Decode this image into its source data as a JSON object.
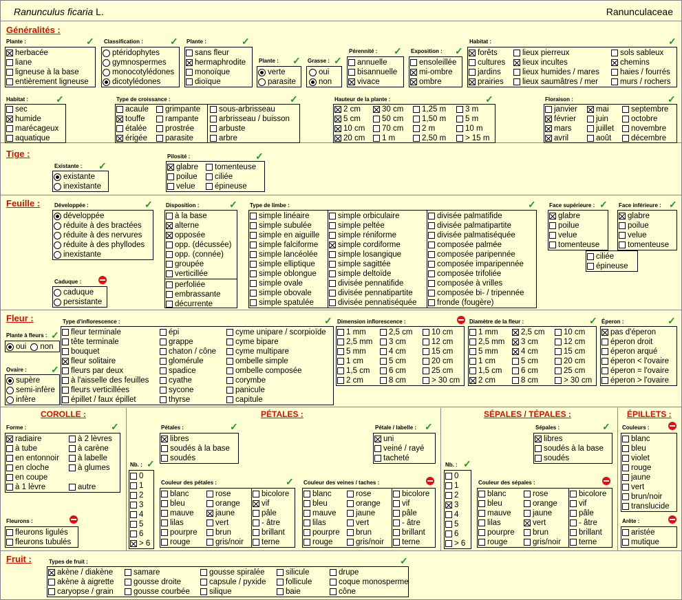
{
  "header": {
    "species": "Ranunculus ficaria",
    "author": "L.",
    "family": "Ranunculaceae"
  },
  "sections": {
    "generalites": "Généralités :",
    "tige": "Tige :",
    "feuille": "Feuille :",
    "fleur": "Fleur :",
    "corolle": "COROLLE :",
    "petales": "PÉTALES :",
    "sepales": "SÉPALES / TÉPALES :",
    "epillets": "ÉPILLETS :",
    "fruit": "Fruit :"
  },
  "labels": {
    "plante": "Plante :",
    "classification": "Classification :",
    "plante2": "Plante :",
    "plante3": "Plante :",
    "grasse": "Grasse :",
    "perennite": "Pérennité :",
    "exposition": "Exposition :",
    "habitat": "Habitat :",
    "habitat2": "Habitat :",
    "croissance": "Type de croissance :",
    "hauteur": "Hauteur de la plante :",
    "floraison": "Floraison :",
    "existante": "Existante :",
    "pilosite": "Pilosité :",
    "developpee": "Développée :",
    "caduque": "Caduque :",
    "disposition": "Disposition :",
    "limbe": "Type de limbe :",
    "face_sup": "Face supérieure :",
    "face_inf": "Face inférieure :",
    "plante_fleurs": "Plante à fleurs :",
    "ovaire": "Ovaire :",
    "inflorescence": "Type d'inflorescence :",
    "dim_inflo": "Dimension inflorescence :",
    "diametre": "Diamètre de la fleur :",
    "eperon": "Éperon :",
    "forme": "Forme :",
    "fleurons": "Fleurons :",
    "nb": "Nb. :",
    "petales_lbl": "Pétales :",
    "couleur_petales": "Couleur des pétales :",
    "petale_labelle": "Pétale / labelle :",
    "couleur_veines": "Couleur des veines / taches :",
    "nb2": "Nb. :",
    "sepales_lbl": "Sépales :",
    "couleur_sepales": "Couleur des sépales :",
    "couleurs": "Couleurs :",
    "arete": "Arête :",
    "types_fruit": "Types de fruit :"
  },
  "opts": {
    "plante": [
      [
        "herbacée",
        1
      ],
      [
        "liane",
        0
      ],
      [
        "ligneuse à la base",
        0
      ],
      [
        "entièrement ligneuse",
        0
      ]
    ],
    "classification": [
      [
        "ptéridophytes",
        0
      ],
      [
        "gymnospermes",
        0
      ],
      [
        "monocotylédones",
        0
      ],
      [
        "dicotylédones",
        1
      ]
    ],
    "plante2": [
      [
        "sans fleur",
        0
      ],
      [
        "hermaphrodite",
        1
      ],
      [
        "monoïque",
        0
      ],
      [
        "dioïque",
        0
      ]
    ],
    "plante3": [
      [
        "verte",
        1
      ],
      [
        "parasite",
        0
      ]
    ],
    "grasse": [
      [
        "oui",
        0
      ],
      [
        "non",
        1
      ]
    ],
    "perennite": [
      [
        "annuelle",
        0
      ],
      [
        "bisannuelle",
        0
      ],
      [
        "vivace",
        1
      ]
    ],
    "exposition": [
      [
        "ensoleillée",
        0
      ],
      [
        "mi-ombre",
        1
      ],
      [
        "ombre",
        1
      ]
    ],
    "habitat_c1": [
      [
        "forêts",
        1
      ],
      [
        "cultures",
        0
      ],
      [
        "jardins",
        0
      ],
      [
        "prairies",
        1
      ]
    ],
    "habitat_c2": [
      [
        "lieux pierreux",
        0
      ],
      [
        "lieux incultes",
        1
      ],
      [
        "lieux humides / mares",
        0
      ],
      [
        "lieux saumâtres / mer",
        0
      ]
    ],
    "habitat_c3": [
      [
        "sols sableux",
        0
      ],
      [
        "chemins",
        1
      ],
      [
        "haies / fourrés",
        0
      ],
      [
        "murs / rochers",
        0
      ]
    ],
    "habitat2": [
      [
        "sec",
        0
      ],
      [
        "humide",
        1
      ],
      [
        "marécageux",
        0
      ],
      [
        "aquatique",
        0
      ]
    ],
    "crois_c1": [
      [
        "acaule",
        0
      ],
      [
        "touffe",
        1
      ],
      [
        "étalée",
        0
      ],
      [
        "érigée",
        1
      ]
    ],
    "crois_c2": [
      [
        "grimpante",
        0
      ],
      [
        "rampante",
        0
      ],
      [
        "prostrée",
        0
      ],
      [
        "parasite",
        0
      ]
    ],
    "crois_c3": [
      [
        "sous-arbrisseau",
        0
      ],
      [
        "arbrisseau / buisson",
        0
      ],
      [
        "arbuste",
        0
      ],
      [
        "arbre",
        0
      ]
    ],
    "haut_c1": [
      [
        "2 cm",
        1
      ],
      [
        "5 cm",
        1
      ],
      [
        "10 cm",
        1
      ],
      [
        "20 cm",
        1
      ]
    ],
    "haut_c2": [
      [
        "30 cm",
        1
      ],
      [
        "50 cm",
        0
      ],
      [
        "70 cm",
        0
      ],
      [
        "1 m",
        0
      ]
    ],
    "haut_c3": [
      [
        "1,25 m",
        0
      ],
      [
        "1,50 m",
        0
      ],
      [
        "2 m",
        0
      ],
      [
        "2,50 m",
        0
      ]
    ],
    "haut_c4": [
      [
        "3 m",
        0
      ],
      [
        "5 m",
        0
      ],
      [
        "10 m",
        0
      ],
      [
        "> 15 m",
        0
      ]
    ],
    "flor_c1": [
      [
        "janvier",
        0
      ],
      [
        "février",
        1
      ],
      [
        "mars",
        1
      ],
      [
        "avril",
        1
      ]
    ],
    "flor_c2": [
      [
        "mai",
        1
      ],
      [
        "juin",
        0
      ],
      [
        "juillet",
        0
      ],
      [
        "août",
        0
      ]
    ],
    "flor_c3": [
      [
        "septembre",
        0
      ],
      [
        "octobre",
        0
      ],
      [
        "novembre",
        0
      ],
      [
        "décembre",
        0
      ]
    ],
    "existante": [
      [
        "existante",
        1
      ],
      [
        "inexistante",
        0
      ]
    ],
    "pilo_c1": [
      [
        "glabre",
        1
      ],
      [
        "poilue",
        0
      ],
      [
        "velue",
        0
      ]
    ],
    "pilo_c2": [
      [
        "tomenteuse",
        0
      ],
      [
        "ciliée",
        0
      ],
      [
        "épineuse",
        0
      ]
    ],
    "developpee": [
      [
        "développée",
        1
      ],
      [
        "réduite à des bractées",
        0
      ],
      [
        "réduite à des nervures",
        0
      ],
      [
        "réduite à des phyllodes",
        0
      ],
      [
        "inexistante",
        0
      ]
    ],
    "caduque": [
      [
        "caduque",
        0
      ],
      [
        "persistante",
        0
      ]
    ],
    "disposition": [
      [
        "à la base",
        0
      ],
      [
        "alterne",
        1
      ],
      [
        "opposée",
        1
      ],
      [
        "opp. (décussée)",
        0
      ],
      [
        "opp. (connée)",
        0
      ],
      [
        "groupée",
        0
      ],
      [
        "verticillée",
        0
      ]
    ],
    "disposition2": [
      [
        "perfoliée",
        0
      ],
      [
        "embrassante",
        0
      ],
      [
        "décurrente",
        0
      ]
    ],
    "limbe_c1": [
      [
        "simple linéaire",
        0
      ],
      [
        "simple subulée",
        0
      ],
      [
        "simple en aiguille",
        0
      ],
      [
        "simple falciforme",
        0
      ],
      [
        "simple lancéolée",
        0
      ],
      [
        "simple elliptique",
        0
      ],
      [
        "simple oblongue",
        0
      ],
      [
        "simple ovale",
        0
      ],
      [
        "simple obovale",
        0
      ],
      [
        "simple spatulée",
        0
      ]
    ],
    "limbe_c2": [
      [
        "simple orbiculaire",
        0
      ],
      [
        "simple peltée",
        0
      ],
      [
        "simple réniforme",
        0
      ],
      [
        "simple cordiforme",
        1
      ],
      [
        "simple losangique",
        0
      ],
      [
        "simple sagittée",
        0
      ],
      [
        "simple deltoïde",
        0
      ],
      [
        "divisée pennatifide",
        0
      ],
      [
        "divisée pennatipartite",
        0
      ],
      [
        "divisée pennatiséquée",
        0
      ]
    ],
    "limbe_c3": [
      [
        "divisée palmatifide",
        0
      ],
      [
        "divisée palmatipartite",
        0
      ],
      [
        "divisée palmatiséquée",
        0
      ],
      [
        "composée palmée",
        0
      ],
      [
        "composée paripennée",
        0
      ],
      [
        "composée imparipennée",
        0
      ],
      [
        "composée trifoliée",
        0
      ],
      [
        "composée à vrilles",
        0
      ],
      [
        "composée bi- / tripennée",
        0
      ],
      [
        "fronde (fougère)",
        0
      ]
    ],
    "face_sup": [
      [
        "glabre",
        1
      ],
      [
        "poilue",
        0
      ],
      [
        "velue",
        0
      ],
      [
        "tomenteuse",
        0
      ]
    ],
    "face_inf": [
      [
        "glabre",
        1
      ],
      [
        "poilue",
        0
      ],
      [
        "velue",
        0
      ],
      [
        "tomenteuse",
        0
      ]
    ],
    "face_inf2": [
      [
        "ciliée",
        0
      ],
      [
        "épineuse",
        0
      ]
    ],
    "plante_fleurs": [
      [
        "oui",
        1
      ],
      [
        "non",
        0
      ]
    ],
    "ovaire": [
      [
        "supère",
        1
      ],
      [
        "semi-infère",
        0
      ],
      [
        "infère",
        0
      ]
    ],
    "inflo_c1": [
      [
        "fleur terminale",
        0
      ],
      [
        "tête terminale",
        0
      ],
      [
        "bouquet",
        0
      ],
      [
        "fleur solitaire",
        1
      ],
      [
        "fleurs par deux",
        0
      ],
      [
        "à l'aisselle des feuilles",
        0
      ],
      [
        "fleurs verticillées",
        0
      ],
      [
        "épillet / faux épillet",
        0
      ]
    ],
    "inflo_c2": [
      [
        "épi",
        0
      ],
      [
        "grappe",
        0
      ],
      [
        "chaton / cône",
        0
      ],
      [
        "glomérule",
        0
      ],
      [
        "spadice",
        0
      ],
      [
        "cyathe",
        0
      ],
      [
        "sycone",
        0
      ],
      [
        "thyrse",
        0
      ]
    ],
    "inflo_c3": [
      [
        "cyme unipare / scorpioïde",
        0
      ],
      [
        "cyme bipare",
        0
      ],
      [
        "cyme multipare",
        0
      ],
      [
        "ombelle simple",
        0
      ],
      [
        "ombelle composée",
        0
      ],
      [
        "corymbe",
        0
      ],
      [
        "panicule",
        0
      ],
      [
        "capitule",
        0
      ]
    ],
    "dim_c1": [
      [
        "1 mm",
        0
      ],
      [
        "2,5 mm",
        0
      ],
      [
        "5 mm",
        0
      ],
      [
        "1 cm",
        0
      ],
      [
        "1,5 cm",
        0
      ],
      [
        "2 cm",
        0
      ]
    ],
    "dim_c2": [
      [
        "2,5 cm",
        0
      ],
      [
        "3 cm",
        0
      ],
      [
        "4 cm",
        0
      ],
      [
        "5 cm",
        0
      ],
      [
        "6 cm",
        0
      ],
      [
        "8 cm",
        0
      ]
    ],
    "dim_c3": [
      [
        "10 cm",
        0
      ],
      [
        "12 cm",
        0
      ],
      [
        "15 cm",
        0
      ],
      [
        "20 cm",
        0
      ],
      [
        "25 cm",
        0
      ],
      [
        "> 30 cm",
        0
      ]
    ],
    "dia_c1": [
      [
        "1 mm",
        0
      ],
      [
        "2,5 mm",
        0
      ],
      [
        "5 mm",
        0
      ],
      [
        "1 cm",
        0
      ],
      [
        "1,5 cm",
        0
      ],
      [
        "2 cm",
        1
      ]
    ],
    "dia_c2": [
      [
        "2,5 cm",
        1
      ],
      [
        "3 cm",
        1
      ],
      [
        "4 cm",
        1
      ],
      [
        "5 cm",
        0
      ],
      [
        "6 cm",
        0
      ],
      [
        "8 cm",
        0
      ]
    ],
    "dia_c3": [
      [
        "10 cm",
        0
      ],
      [
        "12 cm",
        0
      ],
      [
        "15 cm",
        0
      ],
      [
        "20 cm",
        0
      ],
      [
        "25 cm",
        0
      ],
      [
        "> 30 cm",
        0
      ]
    ],
    "eperon": [
      [
        "pas d'éperon",
        1
      ],
      [
        "éperon droit",
        0
      ],
      [
        "éperon arqué",
        0
      ],
      [
        "éperon < l'ovaire",
        0
      ],
      [
        "éperon = l'ovaire",
        0
      ],
      [
        "éperon > l'ovaire",
        0
      ]
    ],
    "forme_c1": [
      [
        "radiaire",
        1
      ],
      [
        "à tube",
        0
      ],
      [
        "en entonnoir",
        0
      ],
      [
        "en cloche",
        0
      ],
      [
        "en coupe",
        0
      ],
      [
        "à 1 lèvre",
        0
      ]
    ],
    "forme_c2": [
      [
        "à 2 lèvres",
        0
      ],
      [
        "à carène",
        0
      ],
      [
        "à labelle",
        0
      ],
      [
        "à glumes",
        0
      ]
    ],
    "forme_c2b": [
      [
        "autre",
        0
      ]
    ],
    "fleurons": [
      [
        "fleurons ligulés",
        0
      ],
      [
        "fleurons tubulés",
        0
      ]
    ],
    "nb": [
      [
        "0",
        0
      ],
      [
        "1",
        0
      ],
      [
        "2",
        0
      ],
      [
        "3",
        0
      ],
      [
        "4",
        0
      ],
      [
        "5",
        0
      ],
      [
        "6",
        0
      ],
      [
        "> 6",
        1
      ]
    ],
    "petales": [
      [
        "libres",
        1
      ],
      [
        "soudés à la base",
        0
      ],
      [
        "soudés",
        0
      ]
    ],
    "couleur_p_c1": [
      [
        "blanc",
        0
      ],
      [
        "bleu",
        0
      ],
      [
        "mauve",
        0
      ],
      [
        "lilas",
        0
      ],
      [
        "pourpre",
        0
      ],
      [
        "rouge",
        0
      ]
    ],
    "couleur_p_c2": [
      [
        "rose",
        0
      ],
      [
        "orange",
        0
      ],
      [
        "jaune",
        1
      ],
      [
        "vert",
        0
      ],
      [
        "brun",
        0
      ],
      [
        "gris/noir",
        0
      ]
    ],
    "couleur_p_c3": [
      [
        "bicolore",
        0
      ],
      [
        "vif",
        1
      ],
      [
        "pâle",
        0
      ],
      [
        "- âtre",
        0
      ],
      [
        "brillant",
        0
      ],
      [
        "terne",
        0
      ]
    ],
    "petale_labelle": [
      [
        "uni",
        1
      ],
      [
        "veiné / rayé",
        0
      ],
      [
        "tacheté",
        0
      ]
    ],
    "couleur_v_c1": [
      [
        "blanc",
        0
      ],
      [
        "bleu",
        0
      ],
      [
        "mauve",
        0
      ],
      [
        "lilas",
        0
      ],
      [
        "pourpre",
        0
      ],
      [
        "rouge",
        0
      ]
    ],
    "couleur_v_c2": [
      [
        "rose",
        0
      ],
      [
        "orange",
        0
      ],
      [
        "jaune",
        0
      ],
      [
        "vert",
        0
      ],
      [
        "brun",
        0
      ],
      [
        "gris/noir",
        0
      ]
    ],
    "couleur_v_c3": [
      [
        "bicolore",
        0
      ],
      [
        "vif",
        0
      ],
      [
        "pâle",
        0
      ],
      [
        "- âtre",
        0
      ],
      [
        "brillant",
        0
      ],
      [
        "terne",
        0
      ]
    ],
    "nb2": [
      [
        "0",
        0
      ],
      [
        "1",
        0
      ],
      [
        "2",
        0
      ],
      [
        "3",
        1
      ],
      [
        "4",
        0
      ],
      [
        "5",
        0
      ],
      [
        "6",
        0
      ],
      [
        "> 6",
        0
      ]
    ],
    "sepales": [
      [
        "libres",
        1
      ],
      [
        "soudés à la base",
        0
      ],
      [
        "soudés",
        0
      ]
    ],
    "couleur_s_c1": [
      [
        "blanc",
        0
      ],
      [
        "bleu",
        0
      ],
      [
        "mauve",
        0
      ],
      [
        "lilas",
        0
      ],
      [
        "pourpre",
        0
      ],
      [
        "rouge",
        0
      ]
    ],
    "couleur_s_c2": [
      [
        "rose",
        0
      ],
      [
        "orange",
        0
      ],
      [
        "jaune",
        0
      ],
      [
        "vert",
        1
      ],
      [
        "brun",
        0
      ],
      [
        "gris/noir",
        0
      ]
    ],
    "couleur_s_c3": [
      [
        "bicolore",
        0
      ],
      [
        "vif",
        0
      ],
      [
        "pâle",
        0
      ],
      [
        "- âtre",
        0
      ],
      [
        "brillant",
        0
      ],
      [
        "terne",
        0
      ]
    ],
    "couleurs": [
      [
        "blanc",
        0
      ],
      [
        "bleu",
        0
      ],
      [
        "violet",
        0
      ],
      [
        "rouge",
        0
      ],
      [
        "jaune",
        0
      ],
      [
        "vert",
        0
      ],
      [
        "brun/noir",
        0
      ],
      [
        "translucide",
        0
      ]
    ],
    "arete": [
      [
        "aristée",
        0
      ],
      [
        "mutique",
        0
      ]
    ],
    "fruit_c1": [
      [
        "akène / diakène",
        1
      ],
      [
        "akène à aigrette",
        0
      ],
      [
        "caryopse / grain",
        0
      ]
    ],
    "fruit_c2": [
      [
        "samare",
        0
      ],
      [
        "gousse droite",
        0
      ],
      [
        "gousse courbée",
        0
      ]
    ],
    "fruit_c3": [
      [
        "gousse spiralée",
        0
      ],
      [
        "capsule / pyxide",
        0
      ],
      [
        "silique",
        0
      ]
    ],
    "fruit_c4": [
      [
        "silicule",
        0
      ],
      [
        "follicule",
        0
      ],
      [
        "baie",
        0
      ]
    ],
    "fruit_c5": [
      [
        "drupe",
        0
      ],
      [
        "coque monosperme",
        0
      ],
      [
        "cône",
        0
      ]
    ]
  },
  "icons": {
    "valid": "check-icon",
    "invalid": "no-entry-icon"
  },
  "colors": {
    "background": "#ffffd6",
    "section_title": "#cc1100",
    "check": "#1a9a1a",
    "no_entry": "#e01010"
  }
}
